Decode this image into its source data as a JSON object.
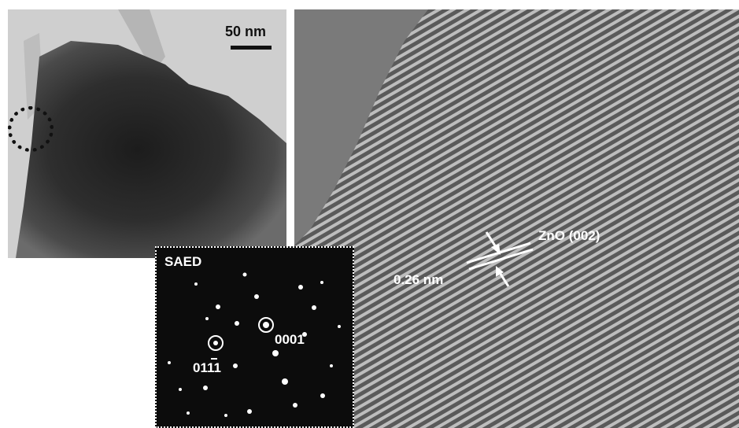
{
  "tem": {
    "scale_label": "50 nm"
  },
  "hrtem": {
    "phase_label": "ZnO (002)",
    "spacing_label": "0.26 nm"
  },
  "saed": {
    "title": "SAED",
    "index_a": "0001",
    "index_b": "0111"
  },
  "colors": {
    "annotation": "#ffffff",
    "scale": "#111111"
  }
}
